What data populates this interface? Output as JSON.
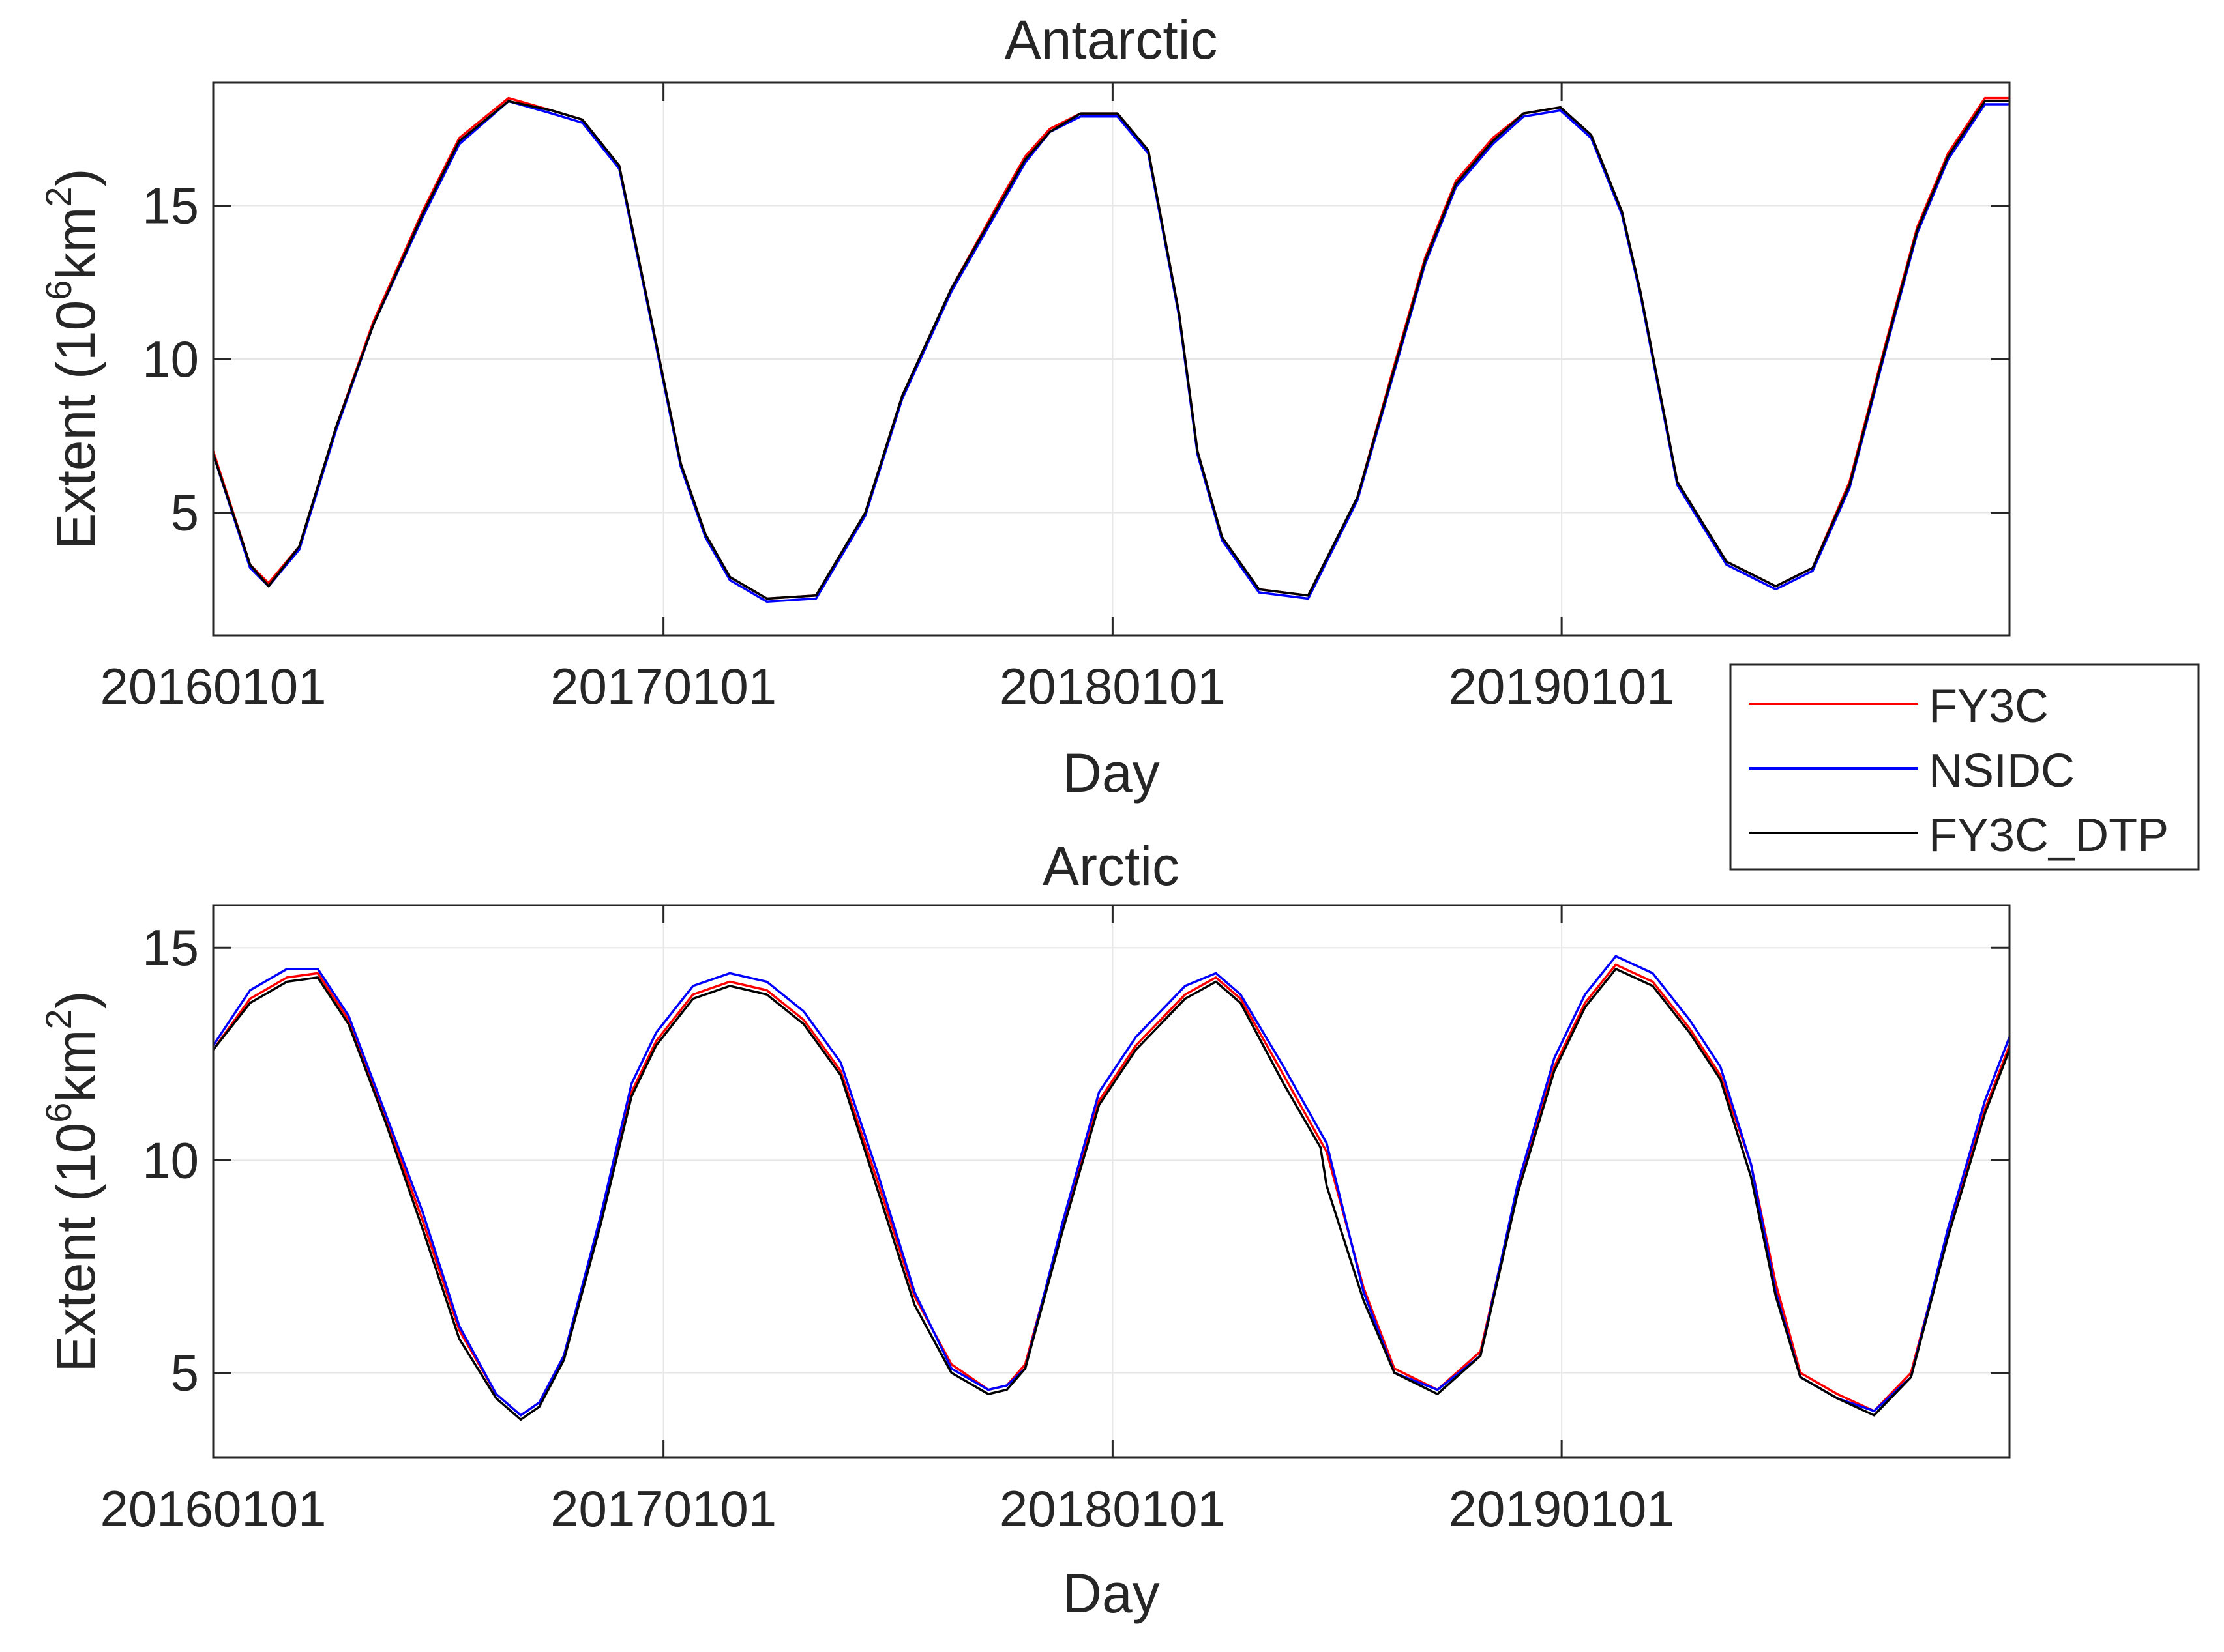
{
  "colors": {
    "FY3C": "#ff0000",
    "NSIDC": "#0000ff",
    "FY3C_DTP": "#000000",
    "grid": "#e6e6e6",
    "axis": "#262626"
  },
  "legend": {
    "placement": "east, between panels",
    "entries": [
      "FY3C",
      "NSIDC",
      "FY3C_DTP"
    ]
  },
  "chart_data": [
    {
      "type": "line",
      "title": "Antarctic",
      "xlabel": "Day",
      "ylabel_text": "Extent (10",
      "ylabel_sup1": "6",
      "ylabel_mid": "km",
      "ylabel_sup2": "2",
      "ylabel_end": ")",
      "x_unit": "day since 2016-01-01",
      "xlim": [
        0,
        1460
      ],
      "ylim": [
        1,
        19
      ],
      "xticks": [
        0,
        366,
        731,
        1096
      ],
      "xticklabels": [
        "20160101",
        "20170101",
        "20180101",
        "20190101"
      ],
      "yticks": [
        5,
        10,
        15
      ],
      "yticklabels": [
        "5",
        "10",
        "15"
      ],
      "grid": true,
      "series": [
        {
          "name": "FY3C",
          "x": [
            0,
            30,
            45,
            70,
            100,
            130,
            170,
            200,
            240,
            275,
            300,
            330,
            355,
            380,
            400,
            420,
            450,
            490,
            530,
            560,
            600,
            640,
            660,
            680,
            705,
            735,
            760,
            785,
            800,
            820,
            850,
            890,
            930,
            960,
            985,
            1010,
            1040,
            1065,
            1095,
            1120,
            1145,
            1160,
            1190,
            1230,
            1270,
            1300,
            1330,
            1360,
            1385,
            1410,
            1440,
            1460
          ],
          "y": [
            7.0,
            3.3,
            2.7,
            3.9,
            7.8,
            11.2,
            14.8,
            17.2,
            18.5,
            18.1,
            17.8,
            16.3,
            11.5,
            6.6,
            4.3,
            2.9,
            2.2,
            2.3,
            5.0,
            8.8,
            12.3,
            15.2,
            16.6,
            17.5,
            18.0,
            18.0,
            16.8,
            11.5,
            7.0,
            4.2,
            2.5,
            2.3,
            5.5,
            9.8,
            13.3,
            15.8,
            17.2,
            18.0,
            18.2,
            17.3,
            14.8,
            12.2,
            6.0,
            3.4,
            2.6,
            3.2,
            6.0,
            10.6,
            14.3,
            16.7,
            18.5,
            18.5
          ]
        },
        {
          "name": "NSIDC",
          "x": [
            0,
            30,
            45,
            70,
            100,
            130,
            170,
            200,
            240,
            275,
            300,
            330,
            355,
            380,
            400,
            420,
            450,
            490,
            530,
            560,
            600,
            640,
            660,
            680,
            705,
            735,
            760,
            785,
            800,
            820,
            850,
            890,
            930,
            960,
            985,
            1010,
            1040,
            1065,
            1095,
            1120,
            1145,
            1160,
            1190,
            1230,
            1270,
            1300,
            1330,
            1360,
            1385,
            1410,
            1440,
            1460
          ],
          "y": [
            6.9,
            3.2,
            2.6,
            3.8,
            7.7,
            11.1,
            14.6,
            17.0,
            18.4,
            18.0,
            17.7,
            16.2,
            11.4,
            6.5,
            4.2,
            2.8,
            2.1,
            2.2,
            4.9,
            8.7,
            12.2,
            15.0,
            16.4,
            17.4,
            17.9,
            17.9,
            16.7,
            11.4,
            6.9,
            4.1,
            2.4,
            2.2,
            5.4,
            9.6,
            13.1,
            15.6,
            17.0,
            17.9,
            18.1,
            17.2,
            14.7,
            12.1,
            5.9,
            3.3,
            2.5,
            3.1,
            5.8,
            10.4,
            14.1,
            16.5,
            18.3,
            18.3
          ]
        },
        {
          "name": "FY3C_DTP",
          "x": [
            0,
            30,
            45,
            70,
            100,
            130,
            170,
            200,
            240,
            275,
            300,
            330,
            355,
            380,
            400,
            420,
            450,
            490,
            530,
            560,
            600,
            640,
            660,
            680,
            705,
            735,
            760,
            785,
            800,
            820,
            850,
            890,
            930,
            960,
            985,
            1010,
            1040,
            1065,
            1095,
            1120,
            1145,
            1160,
            1190,
            1230,
            1270,
            1300,
            1330,
            1360,
            1385,
            1410,
            1440,
            1460
          ],
          "y": [
            6.9,
            3.3,
            2.6,
            3.9,
            7.8,
            11.1,
            14.7,
            17.1,
            18.4,
            18.1,
            17.8,
            16.3,
            11.5,
            6.6,
            4.3,
            2.9,
            2.2,
            2.3,
            5.0,
            8.8,
            12.3,
            15.1,
            16.5,
            17.4,
            18.0,
            18.0,
            16.8,
            11.5,
            7.0,
            4.2,
            2.5,
            2.3,
            5.5,
            9.7,
            13.2,
            15.7,
            17.1,
            18.0,
            18.2,
            17.3,
            14.8,
            12.2,
            6.0,
            3.4,
            2.6,
            3.2,
            5.9,
            10.5,
            14.2,
            16.6,
            18.4,
            18.4
          ]
        }
      ]
    },
    {
      "type": "line",
      "title": "Arctic",
      "xlabel": "Day",
      "ylabel_text": "Extent (10",
      "ylabel_sup1": "6",
      "ylabel_mid": "km",
      "ylabel_sup2": "2",
      "ylabel_end": ")",
      "x_unit": "day since 2016-01-01",
      "xlim": [
        0,
        1460
      ],
      "ylim": [
        3,
        16
      ],
      "xticks": [
        0,
        366,
        731,
        1096
      ],
      "xticklabels": [
        "20160101",
        "20170101",
        "20180101",
        "20190101"
      ],
      "yticks": [
        5,
        10,
        15
      ],
      "yticklabels": [
        "5",
        "10",
        "15"
      ],
      "grid": true,
      "series": [
        {
          "name": "FY3C",
          "x": [
            0,
            30,
            60,
            85,
            110,
            140,
            170,
            200,
            230,
            250,
            265,
            285,
            315,
            340,
            360,
            390,
            420,
            450,
            480,
            510,
            540,
            570,
            600,
            630,
            645,
            660,
            690,
            720,
            750,
            790,
            815,
            835,
            870,
            905,
            935,
            960,
            995,
            1030,
            1060,
            1090,
            1115,
            1140,
            1170,
            1200,
            1225,
            1250,
            1270,
            1290,
            1320,
            1350,
            1380,
            1410,
            1440,
            1460
          ],
          "y": [
            12.6,
            13.8,
            14.3,
            14.4,
            13.3,
            11.0,
            8.6,
            6.0,
            4.5,
            4.0,
            4.3,
            5.4,
            8.6,
            11.6,
            12.8,
            13.9,
            14.2,
            14.0,
            13.3,
            12.1,
            9.5,
            6.8,
            5.2,
            4.6,
            4.7,
            5.2,
            8.4,
            11.4,
            12.7,
            13.9,
            14.3,
            13.8,
            12.0,
            10.2,
            7.0,
            5.1,
            4.6,
            5.5,
            9.3,
            12.2,
            13.7,
            14.6,
            14.2,
            13.1,
            12.0,
            9.9,
            7.1,
            5.0,
            4.5,
            4.1,
            5.0,
            8.3,
            11.2,
            12.7
          ]
        },
        {
          "name": "NSIDC",
          "x": [
            0,
            30,
            60,
            85,
            110,
            140,
            170,
            200,
            230,
            250,
            265,
            285,
            315,
            340,
            360,
            390,
            420,
            450,
            480,
            510,
            540,
            570,
            600,
            630,
            645,
            660,
            690,
            720,
            750,
            790,
            815,
            835,
            870,
            905,
            935,
            960,
            995,
            1030,
            1060,
            1090,
            1115,
            1140,
            1170,
            1200,
            1225,
            1250,
            1270,
            1290,
            1320,
            1350,
            1380,
            1410,
            1440,
            1460
          ],
          "y": [
            12.7,
            14.0,
            14.5,
            14.5,
            13.4,
            11.1,
            8.8,
            6.1,
            4.5,
            4.0,
            4.3,
            5.4,
            8.7,
            11.8,
            13.0,
            14.1,
            14.4,
            14.2,
            13.5,
            12.3,
            9.7,
            6.9,
            5.1,
            4.6,
            4.7,
            5.1,
            8.5,
            11.6,
            12.9,
            14.1,
            14.4,
            13.9,
            12.2,
            10.4,
            6.9,
            5.0,
            4.6,
            5.4,
            9.4,
            12.4,
            13.9,
            14.8,
            14.4,
            13.3,
            12.2,
            9.9,
            6.9,
            4.9,
            4.4,
            4.1,
            4.9,
            8.4,
            11.4,
            12.9
          ]
        },
        {
          "name": "FY3C_DTP",
          "x": [
            0,
            30,
            60,
            85,
            110,
            140,
            170,
            200,
            230,
            250,
            265,
            285,
            315,
            340,
            360,
            390,
            420,
            450,
            480,
            510,
            540,
            570,
            600,
            630,
            645,
            660,
            690,
            720,
            750,
            790,
            815,
            835,
            870,
            900,
            905,
            935,
            960,
            995,
            1030,
            1060,
            1090,
            1115,
            1140,
            1170,
            1200,
            1225,
            1250,
            1270,
            1290,
            1320,
            1350,
            1380,
            1410,
            1440,
            1460
          ],
          "y": [
            12.6,
            13.7,
            14.2,
            14.3,
            13.2,
            10.9,
            8.4,
            5.8,
            4.4,
            3.9,
            4.2,
            5.3,
            8.5,
            11.5,
            12.7,
            13.8,
            14.1,
            13.9,
            13.2,
            12.0,
            9.3,
            6.6,
            5.0,
            4.5,
            4.6,
            5.1,
            8.3,
            11.3,
            12.6,
            13.8,
            14.2,
            13.7,
            11.8,
            10.3,
            9.4,
            6.7,
            5.0,
            4.5,
            5.4,
            9.2,
            12.1,
            13.6,
            14.5,
            14.1,
            13.0,
            11.9,
            9.6,
            6.8,
            4.9,
            4.4,
            4.0,
            4.9,
            8.2,
            11.1,
            12.6
          ]
        }
      ]
    }
  ]
}
